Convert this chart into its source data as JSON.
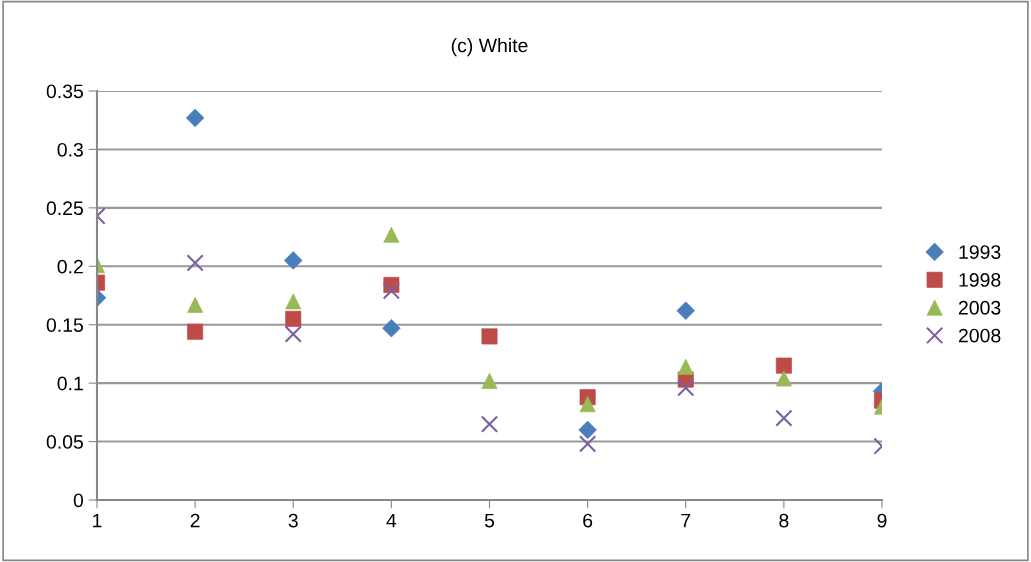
{
  "chart_data": {
    "type": "scatter",
    "title": "(c) White",
    "x": [
      1,
      2,
      3,
      4,
      5,
      6,
      7,
      8,
      9
    ],
    "series": [
      {
        "name": "1993",
        "color": "#4a7ebb",
        "marker": "diamond",
        "values": [
          0.173,
          0.327,
          0.205,
          0.147,
          null,
          0.06,
          0.162,
          null,
          0.093
        ]
      },
      {
        "name": "1998",
        "color": "#be4b48",
        "marker": "square",
        "values": [
          0.186,
          0.144,
          0.155,
          0.184,
          0.14,
          0.088,
          0.103,
          0.115,
          0.085
        ]
      },
      {
        "name": "2003",
        "color": "#98b954",
        "marker": "triangle",
        "values": [
          0.201,
          0.167,
          0.17,
          0.227,
          0.102,
          0.082,
          0.114,
          0.104,
          0.08
        ]
      },
      {
        "name": "2008",
        "color": "#7d60a0",
        "marker": "cross",
        "values": [
          0.243,
          0.203,
          0.142,
          0.179,
          0.065,
          0.048,
          0.096,
          0.07,
          0.046
        ]
      }
    ],
    "xlim": [
      1,
      9
    ],
    "xticks": [
      1,
      2,
      3,
      4,
      5,
      6,
      7,
      8,
      9
    ],
    "ylim": [
      0,
      0.35
    ],
    "yticks": [
      0,
      0.05,
      0.1,
      0.15,
      0.2,
      0.25,
      0.3,
      0.35
    ],
    "grid": "y",
    "legend": "right"
  }
}
